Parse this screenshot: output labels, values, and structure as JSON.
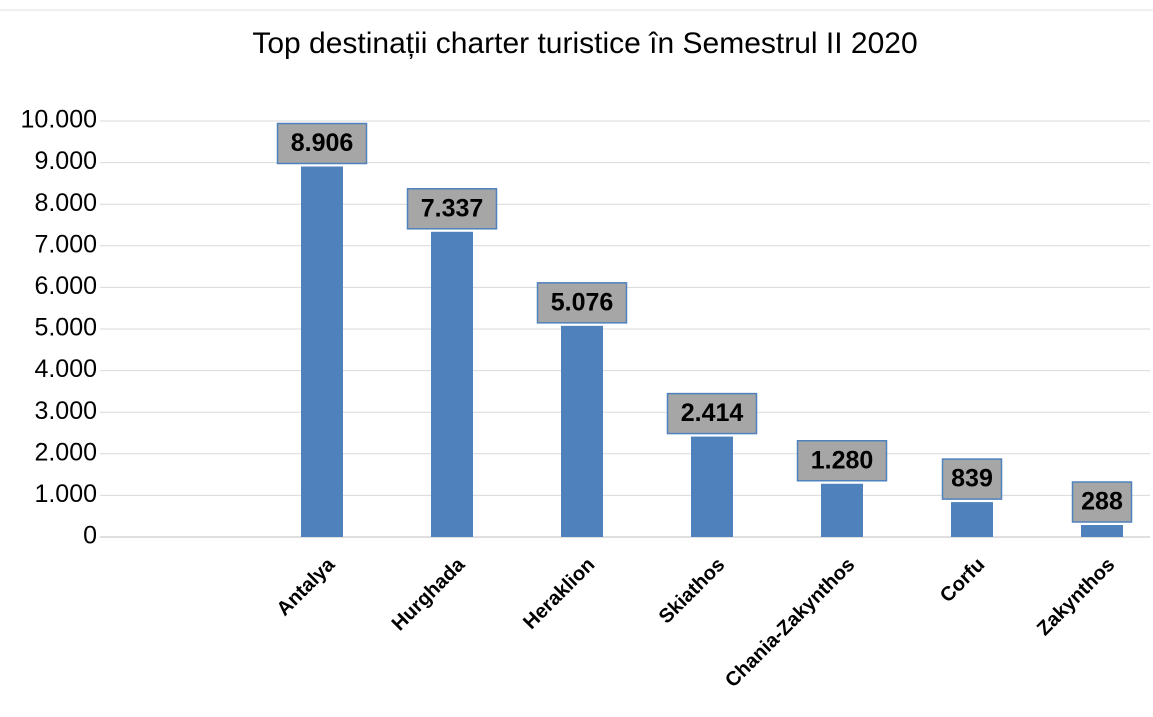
{
  "chart_data": {
    "type": "bar",
    "title": "Top destinații charter turistice în Semestrul II 2020",
    "categories": [
      null,
      "Antalya",
      "Hurghada",
      "Heraklion",
      "Skiathos",
      "Chania-Zakynthos",
      "Corfu",
      "Zakynthos"
    ],
    "values": [
      null,
      8906,
      7337,
      5076,
      2414,
      1280,
      839,
      288
    ],
    "value_labels": [
      null,
      "8.906",
      "7.337",
      "5.076",
      "2.414",
      "1.280",
      "839",
      "288"
    ],
    "color": "#4f81bd",
    "ylim": [
      0,
      10000
    ],
    "yticks": [
      0,
      {
        "value": 1000,
        "label": "1.000"
      },
      {
        "value": 2000,
        "label": "2.000"
      },
      {
        "value": 3000,
        "label": "3.000"
      },
      {
        "value": 4000,
        "label": "4.000"
      },
      {
        "value": 5000,
        "label": "5.000"
      },
      {
        "value": 6000,
        "label": "6.000"
      },
      {
        "value": 7000,
        "label": "7.000"
      },
      {
        "value": 8000,
        "label": "8.000"
      },
      {
        "value": 9000,
        "label": "9.000"
      },
      {
        "value": 10000,
        "label": "10.000"
      }
    ],
    "grid": true
  }
}
